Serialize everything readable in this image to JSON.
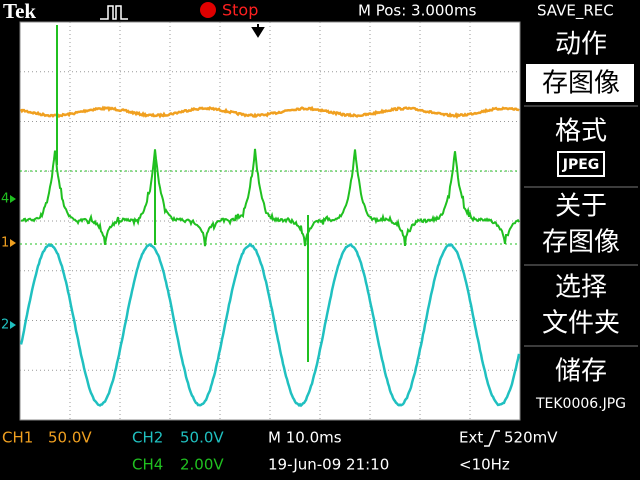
{
  "header": {
    "brand": "Tek",
    "state": "Stop",
    "position": "M Pos: 3.000ms",
    "menu_title": "SAVE_REC"
  },
  "menu": {
    "action_label": "动作",
    "action_value": "存图像",
    "format_label": "格式",
    "format_value": "JPEG",
    "about_lines": [
      "关于",
      "存图像"
    ],
    "select_lines": [
      "选择",
      "文件夹"
    ],
    "save_label": "储存",
    "save_file": "TEK0006.JPG"
  },
  "channel_markers": [
    "4",
    "1",
    "2"
  ],
  "status": {
    "ch1_label": "CH1",
    "ch1_scale": "50.0V",
    "ch2_label": "CH2",
    "ch2_scale": "50.0V",
    "timebase": "M 10.0ms",
    "trigger_source": "Ext",
    "trigger_level": "520mV",
    "ch4_label": "CH4",
    "ch4_scale": "2.00V",
    "datetime": "19-Jun-09 21:10",
    "trigger_freq": "<10Hz"
  }
}
